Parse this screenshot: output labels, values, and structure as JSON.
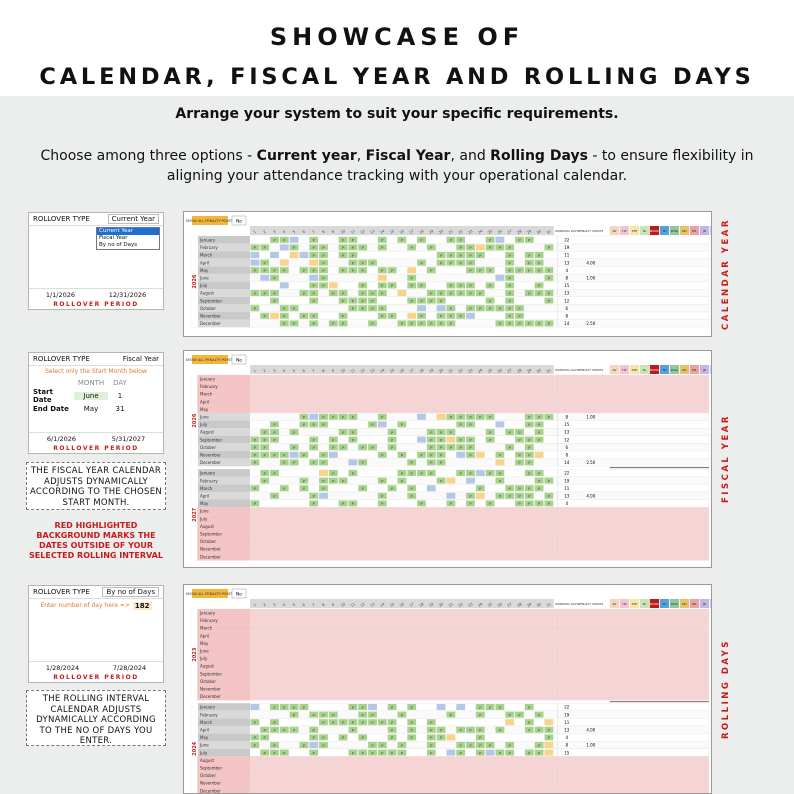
{
  "header": {
    "title_line1": "SHOWCASE OF",
    "title_line2": "CALENDAR, FISCAL YEAR AND ROLLING DAYS",
    "subtitle": "Arrange your system to suit your specific requirements.",
    "desc_before": "Choose among three options - ",
    "opt1": "Current year",
    "comma": ", ",
    "opt2": "Fiscal Year",
    "and": ", and ",
    "opt3": "Rolling Days",
    "desc_after": " - to ensure flexibility in aligning your attendance tracking with your operational calendar."
  },
  "panel1": {
    "label": "ROLLOVER TYPE",
    "value": "Current Year",
    "dropdown": [
      "Current Year",
      "Fiscal Year",
      "By no of Days"
    ],
    "start": "1/1/2026",
    "end": "12/31/2026",
    "footer": "ROLLOVER PERIOD"
  },
  "panel2": {
    "label": "ROLLOVER TYPE",
    "value": "Fiscal Year",
    "hint": "Select only the Start Month below",
    "col_month": "MONTH",
    "col_day": "DAY",
    "start_label": "Start Date",
    "start_month": "June",
    "start_day": "1",
    "end_label": "End Date",
    "end_month": "May",
    "end_day": "31",
    "start": "6/1/2026",
    "end": "5/31/2027",
    "footer": "ROLLOVER PERIOD"
  },
  "note1": "THE FISCAL YEAR CALENDAR ADJUSTS DYNAMICALLY ACCORDING TO THE CHOSEN START MONTH.",
  "red_note": "RED HIGHLIGHTED BACKGROUND MARKS THE DATES OUTSIDE OF YOUR SELECTED ROLLING INTERVAL",
  "panel3": {
    "label": "ROLLOVER TYPE",
    "value": "By no of Days",
    "hint": "Enter number of day here =>",
    "days": "182",
    "start": "1/28/2024",
    "end": "7/28/2024",
    "footer": "ROLLOVER PERIOD"
  },
  "note2": "THE ROLLING INTERVAL CALENDAR ADJUSTS DYNAMICALLY ACCORDING TO THE NO OF DAYS YOU ENTER.",
  "side_labels": [
    "CALENDAR YEAR",
    "FISCAL YEAR",
    "ROLLING DAYS"
  ],
  "calendar": {
    "show_all": "SHOW ALL PENALTY POINTS",
    "show_all_value": "No",
    "col_working": "WORKING DAYS",
    "col_penalty": "PENALTY POINTS",
    "code_cols": [
      "AV",
      "HP",
      "STP",
      "SL",
      "NCNS",
      "TD",
      "DOG",
      "DD",
      "ER",
      "JR",
      "POD",
      "DCK"
    ],
    "code_colors": [
      "#f4d7b8",
      "#f2c4d4",
      "#f7e6a8",
      "#c9e4b8",
      "#b71c1c",
      "#5aa0d8",
      "#8fc7a0",
      "#e6c36a",
      "#e9a3a3",
      "#c6b7e2",
      "#b8d8f0",
      "#d8c3a5"
    ],
    "months": [
      "January",
      "February",
      "March",
      "April",
      "May",
      "June",
      "July",
      "August",
      "September",
      "October",
      "November",
      "December"
    ],
    "year_2026": "2026",
    "year_2027": "2027",
    "year_2023": "2023",
    "year_2024": "2024",
    "working_vals": [
      "22",
      "19",
      "11",
      "13",
      "4",
      "8",
      "15",
      "13",
      "12",
      "6",
      "8",
      "14"
    ],
    "penalty_vals": [
      "",
      "",
      "",
      "4.00",
      "",
      "1.00",
      "",
      "",
      "",
      "",
      "",
      "2.50"
    ]
  }
}
